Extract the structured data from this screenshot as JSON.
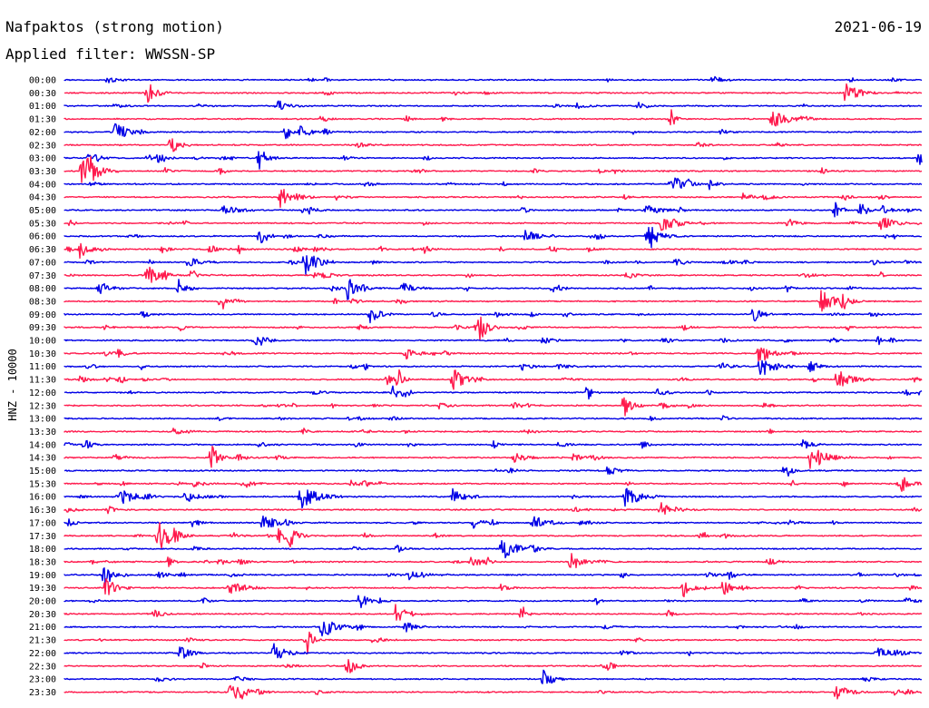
{
  "header": {
    "title": "Nafpaktos (strong motion)",
    "date": "2021-06-19",
    "filter": "Applied filter: WWSSN-SP"
  },
  "chart_data": {
    "type": "line",
    "title": "Nafpaktos (strong motion)",
    "subtitle": "Applied filter: WWSSN-SP",
    "date": "2021-06-19",
    "ylabel": "HNZ - 10000",
    "categories": [
      "00:00",
      "00:30",
      "01:00",
      "01:30",
      "02:00",
      "02:30",
      "03:00",
      "03:30",
      "04:00",
      "04:30",
      "05:00",
      "05:30",
      "06:00",
      "06:30",
      "07:00",
      "07:30",
      "08:00",
      "08:30",
      "09:00",
      "09:30",
      "10:00",
      "10:30",
      "11:00",
      "11:30",
      "12:00",
      "12:30",
      "13:00",
      "13:30",
      "14:00",
      "14:30",
      "15:00",
      "15:30",
      "16:00",
      "16:30",
      "17:00",
      "17:30",
      "18:00",
      "18:30",
      "19:00",
      "19:30",
      "20:00",
      "20:30",
      "21:00",
      "21:30",
      "22:00",
      "22:30",
      "23:00",
      "23:30"
    ],
    "colors": {
      "even_rows": "#0000e6",
      "odd_rows": "#ff1a4d"
    },
    "grid": false,
    "legend": "none"
  }
}
